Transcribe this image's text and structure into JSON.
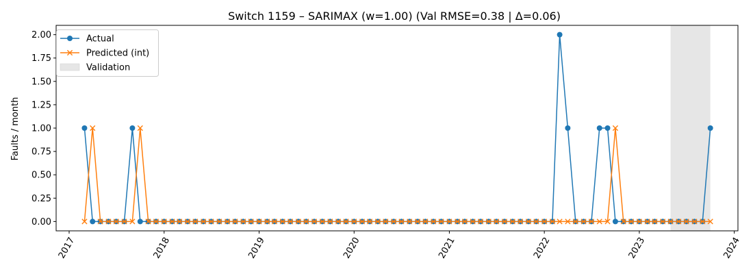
{
  "chart_data": {
    "type": "line",
    "title": "Switch 1159 – SARIMAX (w=1.00) (Val RMSE=0.38 | Δ=0.06)",
    "xlabel": "",
    "ylabel": "Faults / month",
    "xlim": [
      "2016-11-12",
      "2024-01-15"
    ],
    "ylim": [
      -0.1,
      2.1
    ],
    "y_ticks": [
      0.0,
      0.25,
      0.5,
      0.75,
      1.0,
      1.25,
      1.5,
      1.75,
      2.0
    ],
    "y_tick_labels": [
      "0.00",
      "0.25",
      "0.50",
      "0.75",
      "1.00",
      "1.25",
      "1.50",
      "1.75",
      "2.00"
    ],
    "x_ticks": [
      "2017-01-01",
      "2018-01-01",
      "2019-01-01",
      "2020-01-01",
      "2021-01-01",
      "2022-01-01",
      "2023-01-01",
      "2024-01-01"
    ],
    "x_tick_labels": [
      "2017",
      "2018",
      "2019",
      "2020",
      "2021",
      "2022",
      "2023",
      "2024"
    ],
    "x": [
      "2017-03-01",
      "2017-04-01",
      "2017-05-01",
      "2017-06-01",
      "2017-07-01",
      "2017-08-01",
      "2017-09-01",
      "2017-10-01",
      "2017-11-01",
      "2017-12-01",
      "2018-01-01",
      "2018-02-01",
      "2018-03-01",
      "2018-04-01",
      "2018-05-01",
      "2018-06-01",
      "2018-07-01",
      "2018-08-01",
      "2018-09-01",
      "2018-10-01",
      "2018-11-01",
      "2018-12-01",
      "2019-01-01",
      "2019-02-01",
      "2019-03-01",
      "2019-04-01",
      "2019-05-01",
      "2019-06-01",
      "2019-07-01",
      "2019-08-01",
      "2019-09-01",
      "2019-10-01",
      "2019-11-01",
      "2019-12-01",
      "2020-01-01",
      "2020-02-01",
      "2020-03-01",
      "2020-04-01",
      "2020-05-01",
      "2020-06-01",
      "2020-07-01",
      "2020-08-01",
      "2020-09-01",
      "2020-10-01",
      "2020-11-01",
      "2020-12-01",
      "2021-01-01",
      "2021-02-01",
      "2021-03-01",
      "2021-04-01",
      "2021-05-01",
      "2021-06-01",
      "2021-07-01",
      "2021-08-01",
      "2021-09-01",
      "2021-10-01",
      "2021-11-01",
      "2021-12-01",
      "2022-01-01",
      "2022-02-01",
      "2022-03-01",
      "2022-04-01",
      "2022-05-01",
      "2022-06-01",
      "2022-07-01",
      "2022-08-01",
      "2022-09-01",
      "2022-10-01",
      "2022-11-01",
      "2022-12-01",
      "2023-01-01",
      "2023-02-01",
      "2023-03-01",
      "2023-04-01",
      "2023-05-01",
      "2023-06-01",
      "2023-07-01",
      "2023-08-01",
      "2023-09-01",
      "2023-10-01"
    ],
    "series": [
      {
        "name": "Actual",
        "color": "#1f77b4",
        "marker": "circle",
        "values": [
          1,
          0,
          0,
          0,
          0,
          0,
          1,
          0,
          0,
          0,
          0,
          0,
          0,
          0,
          0,
          0,
          0,
          0,
          0,
          0,
          0,
          0,
          0,
          0,
          0,
          0,
          0,
          0,
          0,
          0,
          0,
          0,
          0,
          0,
          0,
          0,
          0,
          0,
          0,
          0,
          0,
          0,
          0,
          0,
          0,
          0,
          0,
          0,
          0,
          0,
          0,
          0,
          0,
          0,
          0,
          0,
          0,
          0,
          0,
          0,
          2,
          1,
          0,
          0,
          0,
          1,
          1,
          0,
          0,
          0,
          0,
          0,
          0,
          0,
          0,
          0,
          0,
          0,
          0,
          1
        ]
      },
      {
        "name": "Predicted (int)",
        "color": "#ff7f0e",
        "marker": "x",
        "values": [
          0,
          1,
          0,
          0,
          0,
          0,
          0,
          1,
          0,
          0,
          0,
          0,
          0,
          0,
          0,
          0,
          0,
          0,
          0,
          0,
          0,
          0,
          0,
          0,
          0,
          0,
          0,
          0,
          0,
          0,
          0,
          0,
          0,
          0,
          0,
          0,
          0,
          0,
          0,
          0,
          0,
          0,
          0,
          0,
          0,
          0,
          0,
          0,
          0,
          0,
          0,
          0,
          0,
          0,
          0,
          0,
          0,
          0,
          0,
          0,
          0,
          0,
          0,
          0,
          0,
          0,
          0,
          1,
          0,
          0,
          0,
          0,
          0,
          0,
          0,
          0,
          0,
          0,
          0,
          0
        ]
      }
    ],
    "validation_span": {
      "label": "Validation",
      "start": "2023-05-01",
      "end": "2023-10-01",
      "color": "#e6e6e6"
    },
    "grid": false,
    "legend_position": "top-left"
  }
}
